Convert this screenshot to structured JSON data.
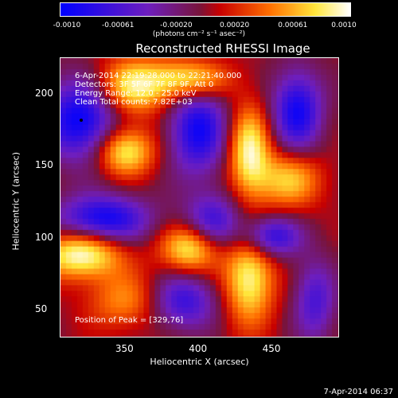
{
  "chart_data": {
    "type": "heatmap",
    "title": "Reconstructed RHESSI Image",
    "xlabel": "Heliocentric X (arcsec)",
    "ylabel": "Heliocentric Y (arcsec)",
    "xlim": [
      306,
      496
    ],
    "ylim": [
      30,
      225
    ],
    "x_ticks": [
      350,
      400,
      450
    ],
    "y_ticks": [
      50,
      100,
      150,
      200
    ],
    "colorbar": {
      "ticks": [
        "-0.0010",
        "-0.00061",
        "-0.00020",
        "0.00020",
        "0.00061",
        "0.0010"
      ],
      "unit_text": "(photons cm⁻² s⁻¹ asec⁻²)",
      "range": [
        -0.001,
        0.001
      ]
    },
    "annotations": {
      "time": "6-Apr-2014 22:19:28.000 to 22:21:40.000",
      "detectors": "Detectors: 3F 5F 6F 7F 8F 9F, Att 0",
      "energy": "Energy Range: 12.0 - 25.0 keV",
      "clean": "Clean     Total counts: 7.82E+03",
      "peak": "Position of Peak = [329,76]"
    },
    "peak": [
      329,
      76
    ],
    "lobes": [
      {
        "x": 320,
        "y": 182,
        "amp": -1.0,
        "sx": 18,
        "sy": 20
      },
      {
        "x": 400,
        "y": 175,
        "amp": -0.9,
        "sx": 14,
        "sy": 22
      },
      {
        "x": 468,
        "y": 188,
        "amp": -0.9,
        "sx": 12,
        "sy": 20
      },
      {
        "x": 335,
        "y": 112,
        "amp": -0.95,
        "sx": 22,
        "sy": 12
      },
      {
        "x": 410,
        "y": 110,
        "amp": -0.7,
        "sx": 14,
        "sy": 14
      },
      {
        "x": 450,
        "y": 100,
        "amp": -0.8,
        "sx": 14,
        "sy": 10
      },
      {
        "x": 390,
        "y": 55,
        "amp": -0.7,
        "sx": 16,
        "sy": 14
      },
      {
        "x": 480,
        "y": 55,
        "amp": -0.6,
        "sx": 10,
        "sy": 20
      },
      {
        "x": 355,
        "y": 205,
        "amp": 0.85,
        "sx": 18,
        "sy": 14
      },
      {
        "x": 395,
        "y": 210,
        "amp": 0.85,
        "sx": 18,
        "sy": 10
      },
      {
        "x": 350,
        "y": 160,
        "amp": 0.9,
        "sx": 14,
        "sy": 12
      },
      {
        "x": 435,
        "y": 160,
        "amp": 0.9,
        "sx": 10,
        "sy": 22
      },
      {
        "x": 320,
        "y": 88,
        "amp": 1.0,
        "sx": 20,
        "sy": 12
      },
      {
        "x": 395,
        "y": 92,
        "amp": 0.9,
        "sx": 14,
        "sy": 12
      },
      {
        "x": 435,
        "y": 70,
        "amp": 0.9,
        "sx": 12,
        "sy": 22
      },
      {
        "x": 462,
        "y": 140,
        "amp": 0.7,
        "sx": 16,
        "sy": 14
      },
      {
        "x": 350,
        "y": 55,
        "amp": 0.5,
        "sx": 18,
        "sy": 14
      }
    ]
  },
  "footer": "7-Apr-2014 06:37"
}
